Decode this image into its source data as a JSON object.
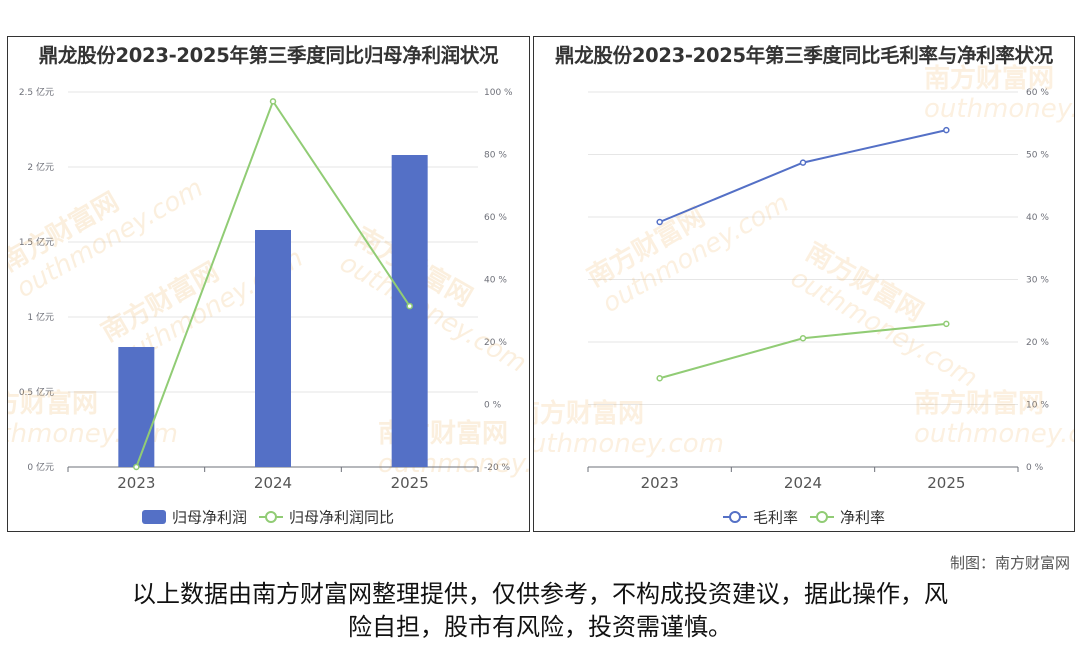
{
  "colors": {
    "bar": "#5470c6",
    "line_green": "#91cc75",
    "line_blue": "#5470c6",
    "grid": "#e6e6e6",
    "axis_text": "#6e7079"
  },
  "watermark": {
    "cn": "南方财富网",
    "en": "outhmoney.com"
  },
  "footer": {
    "credit": "制图：南方财富网",
    "disclaimer_line1": "以上数据由南方财富网整理提供，仅供参考，不构成投资建议，据此操作，风",
    "disclaimer_line2": "险自担，股市有风险，投资需谨慎。"
  },
  "chart_data": [
    {
      "type": "bar",
      "title": "鼎龙股份2023-2025年第三季度同比归母净利润状况",
      "categories": [
        "2023",
        "2024",
        "2025"
      ],
      "left_axis": {
        "ticks": [
          0,
          0.5,
          1,
          1.5,
          2,
          2.5
        ],
        "unit": "亿元",
        "ylim": [
          0,
          2.5
        ],
        "tick_labels": [
          "0 亿元",
          "0.5 亿元",
          "1 亿元",
          "1.5 亿元",
          "2 亿元",
          "2.5 亿元"
        ]
      },
      "right_axis": {
        "ticks": [
          -20,
          0,
          20,
          40,
          60,
          80,
          100
        ],
        "unit": "%",
        "ylim": [
          -20,
          100
        ],
        "tick_labels": [
          "-20 %",
          "0 %",
          "20 %",
          "40 %",
          "60 %",
          "80 %",
          "100 %"
        ]
      },
      "series": [
        {
          "name": "归母净利润",
          "type": "bar",
          "axis": "left",
          "values": [
            0.8,
            1.58,
            2.08
          ]
        },
        {
          "name": "归母净利润同比",
          "type": "line",
          "axis": "right",
          "values": [
            -20,
            97,
            31.5
          ]
        }
      ],
      "legend": "bottom-center",
      "grid": true
    },
    {
      "type": "line",
      "title": "鼎龙股份2023-2025年第三季度同比毛利率与净利率状况",
      "categories": [
        "2023",
        "2024",
        "2025"
      ],
      "right_axis": {
        "ticks": [
          0,
          10,
          20,
          30,
          40,
          50,
          60
        ],
        "unit": "%",
        "ylim": [
          0,
          60
        ],
        "tick_labels": [
          "0 %",
          "10 %",
          "20 %",
          "30 %",
          "40 %",
          "50 %",
          "60 %"
        ]
      },
      "series": [
        {
          "name": "毛利率",
          "type": "line",
          "axis": "right",
          "values": [
            39.2,
            48.7,
            53.9
          ]
        },
        {
          "name": "净利率",
          "type": "line",
          "axis": "right",
          "values": [
            14.2,
            20.6,
            22.9
          ]
        }
      ],
      "legend": "bottom-center",
      "grid": true
    }
  ]
}
